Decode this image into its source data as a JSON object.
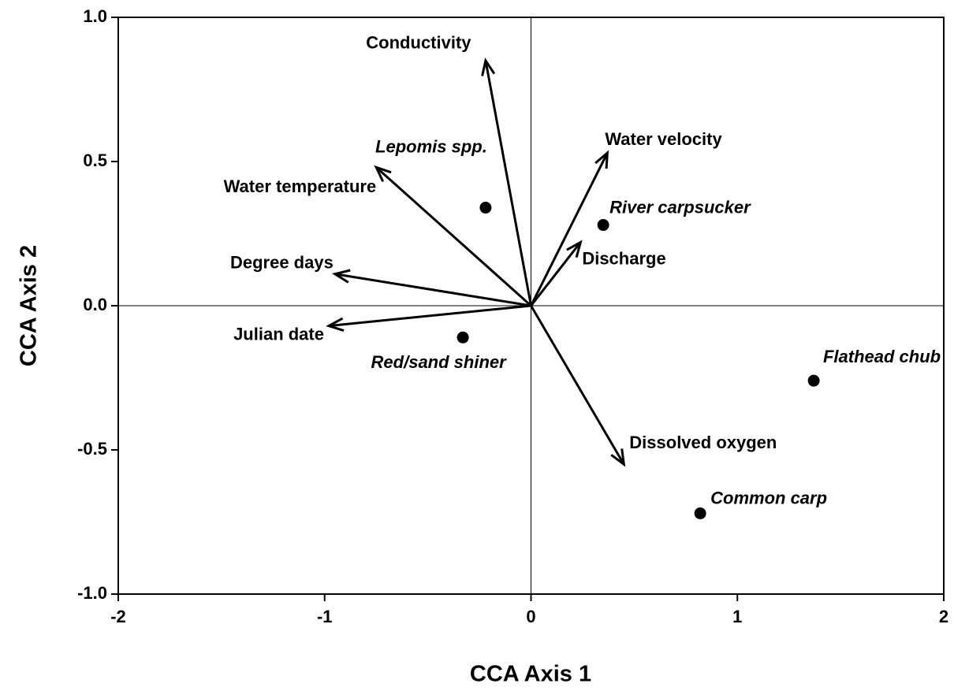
{
  "chart_data": {
    "type": "biplot",
    "xlabel": "CCA Axis 1",
    "ylabel": "CCA Axis 2",
    "xlim": [
      -2,
      2
    ],
    "xticks": [
      -2,
      -1,
      0,
      1,
      2
    ],
    "ylim": [
      -1,
      1
    ],
    "yticks": [
      {
        "value": -1,
        "label": "-1.0"
      },
      {
        "value": -0.5,
        "label": "-0.5"
      },
      {
        "value": 0,
        "label": "0.0"
      },
      {
        "value": 0.5,
        "label": "0.5"
      },
      {
        "value": 1,
        "label": "1.0"
      }
    ],
    "color": "#000000",
    "vectors": [
      {
        "name": "Conductivity",
        "x": -0.22,
        "y": 0.85
      },
      {
        "name": "Water velocity",
        "x": 0.37,
        "y": 0.53
      },
      {
        "name": "Water temperature",
        "x": -0.75,
        "y": 0.48
      },
      {
        "name": "Degree days",
        "x": -0.95,
        "y": 0.11
      },
      {
        "name": "Julian date",
        "x": -0.98,
        "y": -0.07
      },
      {
        "name": "Discharge",
        "x": 0.24,
        "y": 0.22
      },
      {
        "name": "Dissolved oxygen",
        "x": 0.45,
        "y": -0.55
      }
    ],
    "points": [
      {
        "name": "Lepomis spp.",
        "x": -0.22,
        "y": 0.34
      },
      {
        "name": "River carpsucker",
        "x": 0.35,
        "y": 0.28
      },
      {
        "name": "Red/sand shiner",
        "x": -0.33,
        "y": -0.11
      },
      {
        "name": "Flathead chub",
        "x": 1.37,
        "y": -0.26
      },
      {
        "name": "Common carp",
        "x": 0.82,
        "y": -0.72
      }
    ]
  }
}
